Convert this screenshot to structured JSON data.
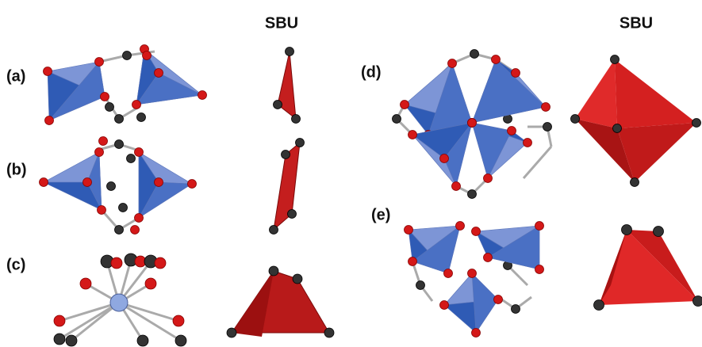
{
  "headers": [
    "SBU",
    "SBU"
  ],
  "panels": [
    {
      "label": "(a)"
    },
    {
      "label": "(b)"
    },
    {
      "label": "(c)"
    },
    {
      "label": "(d)"
    },
    {
      "label": "(e)"
    }
  ]
}
